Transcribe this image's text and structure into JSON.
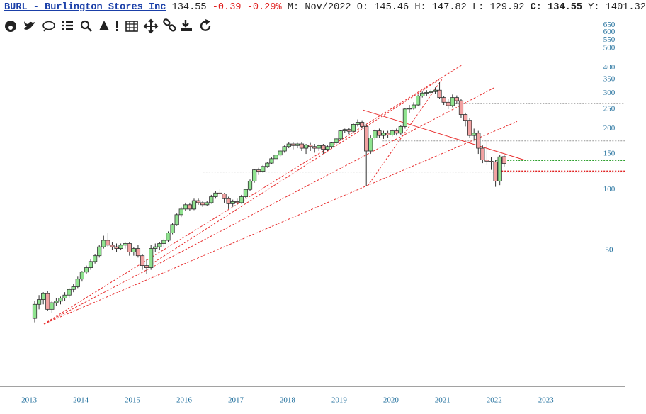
{
  "chart_data": {
    "type": "candlestick",
    "title": "BURL - Burlington Stores Inc",
    "last": 134.55,
    "change": -0.39,
    "change_pct": "-0.29%",
    "fields": [
      {
        "label": "M:",
        "value": "Nov/2022"
      },
      {
        "label": "O:",
        "value": 145.46
      },
      {
        "label": "H:",
        "value": 147.82
      },
      {
        "label": "L:",
        "value": 129.92
      },
      {
        "label": "C:",
        "value": 134.55
      },
      {
        "label": "Y:",
        "value": 1401.32
      }
    ],
    "log_scale": true,
    "grid": false,
    "up_color": "#8fe38f",
    "down_color": "#f2a2a2",
    "ylim": [
      10.6,
      680
    ],
    "yticks": [
      50,
      100,
      150,
      200,
      250,
      300,
      350,
      400,
      500,
      550,
      600,
      650
    ],
    "xlim": [
      -8.06,
      137.0
    ],
    "xticks": [
      {
        "value": -1.3,
        "label": "2013"
      },
      {
        "value": 10.7,
        "label": "2014"
      },
      {
        "value": 22.7,
        "label": "2015"
      },
      {
        "value": 34.7,
        "label": "2016"
      },
      {
        "value": 46.7,
        "label": "2017"
      },
      {
        "value": 58.7,
        "label": "2018"
      },
      {
        "value": 70.7,
        "label": "2019"
      },
      {
        "value": 82.7,
        "label": "2020"
      },
      {
        "value": 94.7,
        "label": "2021"
      },
      {
        "value": 106.7,
        "label": "2022"
      },
      {
        "value": 118.7,
        "label": "2023"
      }
    ],
    "candles": [
      [
        23,
        28,
        22,
        27
      ],
      [
        27,
        30,
        25.5,
        28.5
      ],
      [
        28.5,
        31,
        27,
        30.5
      ],
      [
        30.5,
        31.5,
        25,
        25.5
      ],
      [
        25.5,
        28,
        24.5,
        27.5
      ],
      [
        27.5,
        29,
        26.5,
        28
      ],
      [
        28,
        29.5,
        27,
        29
      ],
      [
        29,
        31,
        28,
        30
      ],
      [
        30,
        32.5,
        29,
        32
      ],
      [
        32,
        34,
        31,
        33
      ],
      [
        33,
        37,
        32.5,
        36
      ],
      [
        36,
        39.5,
        35,
        39
      ],
      [
        39,
        42,
        38,
        41
      ],
      [
        41,
        45,
        40,
        44
      ],
      [
        44,
        48,
        43,
        47
      ],
      [
        47,
        53,
        46,
        52
      ],
      [
        52,
        59,
        51,
        56
      ],
      [
        56,
        61,
        52,
        53
      ],
      [
        53,
        55,
        50,
        52
      ],
      [
        52,
        54,
        49,
        51
      ],
      [
        51,
        54,
        50,
        53
      ],
      [
        53,
        55,
        51,
        54
      ],
      [
        54,
        55,
        47,
        49
      ],
      [
        49,
        52,
        47,
        51
      ],
      [
        51,
        53,
        46,
        47
      ],
      [
        47,
        48,
        40,
        42
      ],
      [
        42,
        45,
        38,
        41
      ],
      [
        41,
        53,
        40,
        51
      ],
      [
        51,
        54,
        49,
        52
      ],
      [
        52,
        55,
        50,
        54
      ],
      [
        54,
        57,
        52,
        56
      ],
      [
        56,
        62,
        55,
        61
      ],
      [
        61,
        68,
        60,
        67
      ],
      [
        67,
        76,
        66,
        75
      ],
      [
        75,
        82,
        73,
        80
      ],
      [
        80,
        86,
        78,
        84
      ],
      [
        84,
        86,
        78,
        80
      ],
      [
        80,
        90,
        79,
        88
      ],
      [
        88,
        90,
        84,
        86
      ],
      [
        86,
        88,
        82,
        84
      ],
      [
        84,
        88,
        83,
        86
      ],
      [
        86,
        94,
        85,
        92
      ],
      [
        92,
        98,
        90,
        96
      ],
      [
        96,
        100,
        92,
        95
      ],
      [
        95,
        96,
        86,
        90
      ],
      [
        90,
        92,
        80,
        85
      ],
      [
        85,
        89,
        82,
        87
      ],
      [
        87,
        90,
        84,
        86
      ],
      [
        86,
        94,
        85,
        92
      ],
      [
        92,
        101,
        91,
        100
      ],
      [
        100,
        112,
        98,
        110
      ],
      [
        110,
        126,
        108,
        125
      ],
      [
        125,
        128,
        118,
        123
      ],
      [
        123,
        132,
        121,
        130
      ],
      [
        130,
        137,
        128,
        135
      ],
      [
        135,
        144,
        133,
        142
      ],
      [
        142,
        150,
        140,
        148
      ],
      [
        148,
        157,
        145,
        155
      ],
      [
        155,
        165,
        152,
        163
      ],
      [
        163,
        171,
        160,
        168
      ],
      [
        168,
        172,
        158,
        165
      ],
      [
        165,
        170,
        160,
        168
      ],
      [
        168,
        171,
        155,
        160
      ],
      [
        160,
        168,
        150,
        166
      ],
      [
        166,
        170,
        155,
        163
      ],
      [
        163,
        168,
        152,
        160
      ],
      [
        160,
        167,
        155,
        165
      ],
      [
        165,
        168,
        150,
        158
      ],
      [
        158,
        165,
        155,
        163
      ],
      [
        163,
        172,
        160,
        170
      ],
      [
        170,
        180,
        166,
        178
      ],
      [
        178,
        197,
        175,
        195
      ],
      [
        195,
        200,
        190,
        198
      ],
      [
        198,
        202,
        188,
        194
      ],
      [
        194,
        212,
        190,
        210
      ],
      [
        210,
        222,
        205,
        215
      ],
      [
        215,
        220,
        200,
        205
      ],
      [
        205,
        210,
        104,
        155
      ],
      [
        155,
        185,
        150,
        180
      ],
      [
        180,
        198,
        175,
        195
      ],
      [
        195,
        200,
        180,
        185
      ],
      [
        185,
        195,
        178,
        190
      ],
      [
        190,
        195,
        180,
        186
      ],
      [
        186,
        198,
        183,
        195
      ],
      [
        195,
        200,
        185,
        190
      ],
      [
        190,
        208,
        186,
        205
      ],
      [
        205,
        252,
        200,
        250
      ],
      [
        250,
        262,
        240,
        252
      ],
      [
        252,
        270,
        248,
        262
      ],
      [
        262,
        295,
        258,
        290
      ],
      [
        290,
        305,
        285,
        300
      ],
      [
        300,
        310,
        290,
        302
      ],
      [
        302,
        312,
        295,
        305
      ],
      [
        305,
        320,
        298,
        310
      ],
      [
        310,
        340,
        280,
        285
      ],
      [
        285,
        290,
        262,
        270
      ],
      [
        270,
        280,
        250,
        260
      ],
      [
        260,
        295,
        255,
        285
      ],
      [
        285,
        292,
        265,
        275
      ],
      [
        275,
        280,
        225,
        235
      ],
      [
        235,
        240,
        205,
        220
      ],
      [
        220,
        225,
        180,
        185
      ],
      [
        185,
        200,
        175,
        190
      ],
      [
        190,
        195,
        150,
        160
      ],
      [
        160,
        165,
        135,
        140
      ],
      [
        140,
        175,
        132,
        138
      ],
      [
        138,
        145,
        125,
        137
      ],
      [
        137,
        140,
        103,
        110
      ],
      [
        110,
        148,
        105,
        145
      ],
      [
        145.46,
        147.82,
        129.92,
        134.55
      ]
    ],
    "levels": [
      {
        "value": 122,
        "x_start": 39.1,
        "color": "#999999",
        "width": 1
      },
      {
        "value": 174,
        "x_start": 80.8,
        "color": "#999999",
        "width": 1
      },
      {
        "value": 267,
        "x_start": 95.6,
        "color": "#999999",
        "width": 1
      },
      {
        "value": 139,
        "x_start": 107.1,
        "color": "#2ca02c",
        "width": 1
      },
      {
        "value": 123,
        "x_start": 107.1,
        "color": "#e02020",
        "width": 2
      }
    ],
    "trendlines": [
      {
        "x": [
          2.14,
          99.2
        ],
        "y": [
          21.6,
          413
        ],
        "color": "#e83030",
        "dashed": true
      },
      {
        "x": [
          2.14,
          106.7
        ],
        "y": [
          21.6,
          319
        ],
        "color": "#e83030",
        "dashed": true
      },
      {
        "x": [
          2.14,
          112.0
        ],
        "y": [
          21.6,
          217
        ],
        "color": "#e83030",
        "dashed": true
      },
      {
        "x": [
          25.7,
          93.9
        ],
        "y": [
          40.9,
          349
        ],
        "color": "#e83030",
        "dashed": true
      },
      {
        "x": [
          77.3,
          94.7
        ],
        "y": [
          104,
          354
        ],
        "color": "#e83030",
        "dashed": true
      },
      {
        "x": [
          76.3,
          113.7
        ],
        "y": [
          247,
          140
        ],
        "color": "#e83030",
        "dashed": false
      }
    ]
  }
}
